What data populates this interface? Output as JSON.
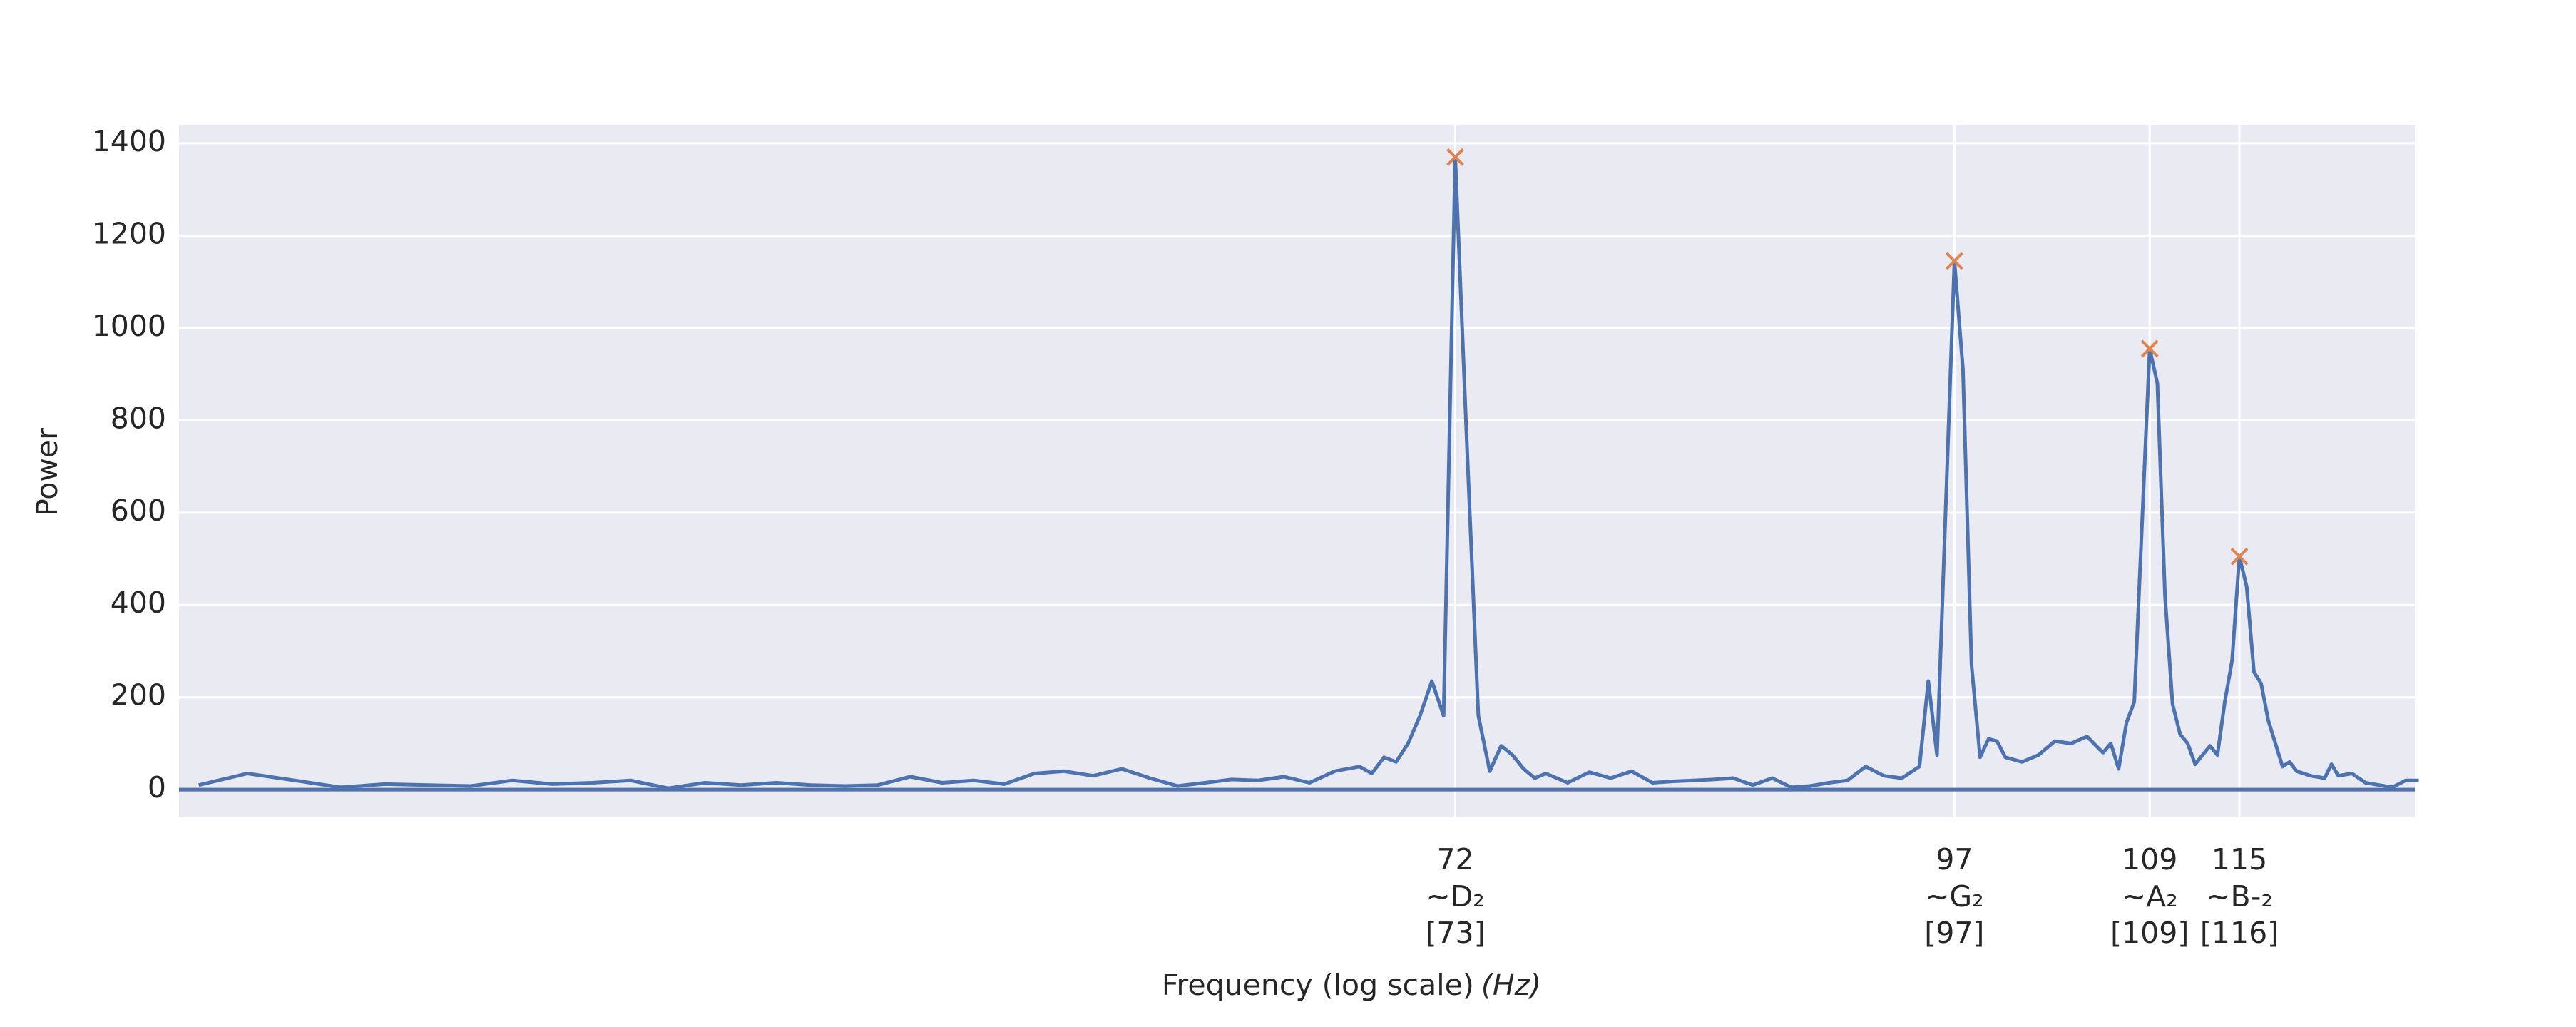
{
  "chart_data": {
    "type": "line",
    "ylabel": "Power",
    "xlabel": "Frequency (log scale)",
    "xlabel_unit": "(Hz)",
    "xscale": "log",
    "grid": true,
    "xlim": [
      33.6,
      127.7
    ],
    "ylim": [
      -60,
      1440
    ],
    "yticks": [
      0,
      200,
      400,
      600,
      800,
      1000,
      1200,
      1400
    ],
    "xticks": [
      72,
      97,
      109,
      115
    ],
    "xtick_sublabels": [
      [
        "~D₂",
        "[73]"
      ],
      [
        "~G₂",
        "[97]"
      ],
      [
        "~A₂",
        "[109]"
      ],
      [
        "~B-₂",
        "[116]"
      ]
    ],
    "hline": 0,
    "x": [
      34,
      35,
      36,
      37,
      38,
      39,
      40,
      41,
      42,
      43,
      44,
      45,
      46,
      47,
      48,
      49,
      50,
      51,
      52,
      53,
      54,
      55,
      56,
      57,
      58,
      59,
      60,
      61,
      62,
      63,
      64,
      65,
      66,
      67,
      68,
      68.5,
      69,
      69.5,
      70,
      70.5,
      71,
      71.5,
      72,
      72.5,
      73,
      73.5,
      74,
      74.5,
      75,
      75.5,
      76,
      77,
      78,
      79,
      80,
      81,
      82,
      83,
      84,
      85,
      86,
      87,
      88,
      89,
      90,
      91,
      92,
      93,
      94,
      95,
      95.5,
      96,
      97,
      97.5,
      98,
      98.5,
      99,
      99.5,
      100,
      101,
      102,
      103,
      104,
      105,
      106,
      106.5,
      107,
      107.5,
      108,
      109,
      109.5,
      110,
      110.5,
      111,
      111.5,
      112,
      113,
      113.5,
      114,
      114.5,
      115,
      115.5,
      116,
      116.5,
      117,
      118,
      118.5,
      119,
      120,
      121,
      121.5,
      122,
      123,
      124,
      125,
      126,
      127,
      128
    ],
    "series": [
      {
        "color": "#4c72b0",
        "values": [
          10,
          35,
          20,
          5,
          12,
          10,
          8,
          20,
          12,
          15,
          20,
          3,
          15,
          10,
          15,
          10,
          8,
          10,
          28,
          15,
          20,
          12,
          35,
          40,
          30,
          45,
          25,
          8,
          15,
          22,
          20,
          28,
          15,
          40,
          50,
          35,
          70,
          60,
          100,
          160,
          235,
          160,
          1370,
          750,
          160,
          40,
          95,
          75,
          45,
          25,
          35,
          15,
          38,
          25,
          40,
          15,
          18,
          20,
          22,
          25,
          10,
          25,
          5,
          8,
          15,
          20,
          50,
          30,
          25,
          50,
          235,
          75,
          1145,
          910,
          270,
          70,
          110,
          105,
          70,
          60,
          75,
          105,
          100,
          115,
          80,
          100,
          45,
          145,
          190,
          955,
          880,
          420,
          185,
          120,
          100,
          55,
          95,
          75,
          190,
          280,
          505,
          440,
          255,
          230,
          150,
          50,
          60,
          40,
          30,
          25,
          55,
          30,
          35,
          15,
          10,
          5,
          20,
          20
        ]
      }
    ],
    "peaks": {
      "color": "#dd8452",
      "x": [
        72,
        97,
        109,
        115
      ],
      "values": [
        1370,
        1145,
        955,
        505
      ]
    }
  }
}
